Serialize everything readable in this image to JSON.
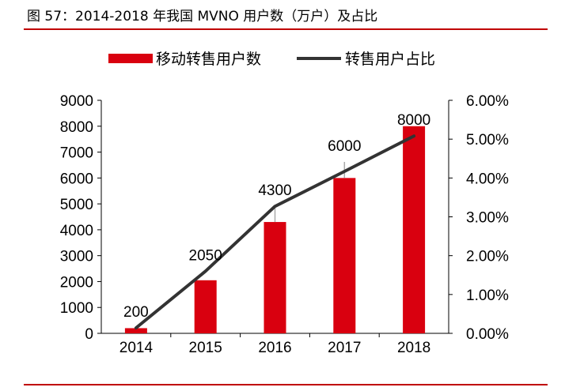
{
  "title": "图 57：2014-2018 年我国 MVNO 用户数（万户）及占比",
  "chart_data": {
    "type": "bar+line",
    "categories": [
      "2014",
      "2015",
      "2016",
      "2017",
      "2018"
    ],
    "series": [
      {
        "name": "移动转售用户数",
        "type": "bar",
        "axis": "left",
        "values": [
          200,
          2050,
          4300,
          6000,
          8000
        ],
        "color": "#d9000f",
        "data_labels": [
          "200",
          "2050",
          "4300",
          "6000",
          "8000"
        ]
      },
      {
        "name": "转售用户占比",
        "type": "line",
        "axis": "right",
        "values": [
          0.14,
          1.6,
          3.27,
          4.17,
          5.08
        ],
        "unit": "%",
        "color": "#333333"
      }
    ],
    "ylim_left": [
      0,
      9000
    ],
    "yticks_left": [
      "0",
      "1000",
      "2000",
      "3000",
      "4000",
      "5000",
      "6000",
      "7000",
      "8000",
      "9000"
    ],
    "ylim_right": [
      0,
      6
    ],
    "yticks_right": [
      "0.00%",
      "1.00%",
      "2.00%",
      "3.00%",
      "4.00%",
      "5.00%",
      "6.00%"
    ],
    "legend": "top",
    "grid": false
  }
}
